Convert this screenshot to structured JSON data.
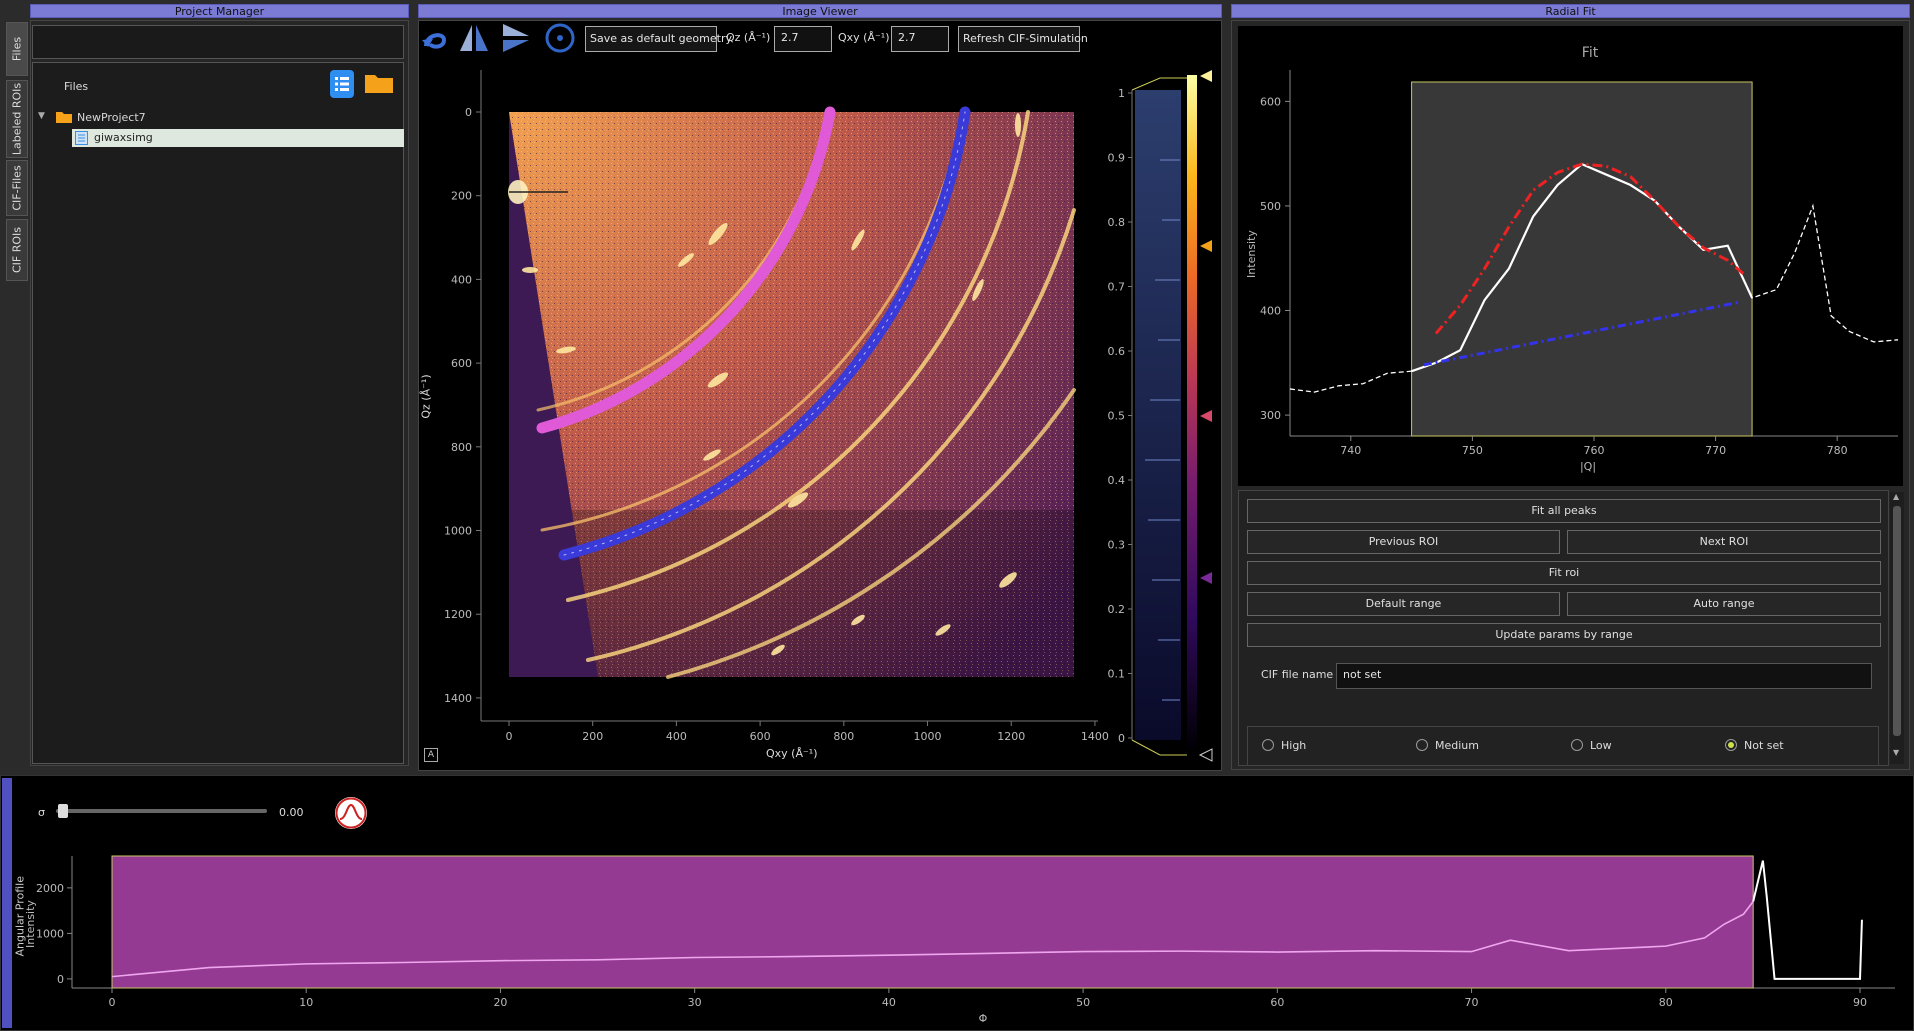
{
  "project_manager": {
    "title": "Project Manager",
    "tabs": [
      "Files",
      "Labeled ROIs",
      "CIF-Files",
      "CIF ROIs"
    ],
    "files_label": "Files",
    "tree": {
      "project": "NewProject7",
      "file": "giwaxsimg"
    }
  },
  "image_viewer": {
    "title": "Image Viewer",
    "save_geometry_label": "Save as default geometry",
    "qz_label": "Qz (Å⁻¹)",
    "qz_value": "2.7",
    "qxy_label": "Qxy (Å⁻¹)",
    "qxy_value": "2.7",
    "refresh_label": "Refresh CIF-Simulation",
    "x_axis_label": "Qxy (Å⁻¹)",
    "y_axis_label": "Qz (Å⁻¹)",
    "x_ticks": [
      "0",
      "200",
      "400",
      "600",
      "800",
      "1000",
      "1200",
      "1400"
    ],
    "y_ticks": [
      "0",
      "200",
      "400",
      "600",
      "800",
      "1000",
      "1200",
      "1400"
    ],
    "colorbar_ticks": [
      "1",
      "0.9",
      "0.8",
      "0.7",
      "0.6",
      "0.5",
      "0.4",
      "0.3",
      "0.2",
      "0.1",
      "0"
    ],
    "corner_button": "A"
  },
  "radial_fit": {
    "title": "Radial Fit",
    "chart_title": "Fit",
    "xlabel": "|Q|",
    "ylabel": "Intensity",
    "x_ticks": [
      "740",
      "750",
      "760",
      "770",
      "780"
    ],
    "y_ticks": [
      "600",
      "500",
      "400",
      "300"
    ],
    "buttons": {
      "fit_all": "Fit all peaks",
      "previous_roi": "Previous ROI",
      "next_roi": "Next ROI",
      "fit_roi": "Fit roi",
      "default_range": "Default range",
      "auto_range": "Auto range",
      "update_params": "Update params by range"
    },
    "cif_label": "CIF file name",
    "cif_value": "not set",
    "confidence": {
      "options": [
        "High",
        "Medium",
        "Low",
        "Not set"
      ],
      "selected": "Not set"
    }
  },
  "angular_profile": {
    "side_label": "Angular Profile",
    "sigma_label": "σ",
    "sigma_value": "0.00",
    "chart_title": "",
    "xlabel": "Φ",
    "ylabel": "Intensity",
    "x_ticks": [
      "0",
      "10",
      "20",
      "30",
      "40",
      "50",
      "60",
      "70",
      "80",
      "90"
    ],
    "y_ticks": [
      "2000",
      "1000",
      "0"
    ]
  },
  "chart_data": [
    {
      "type": "line",
      "title": "Fit",
      "xlabel": "|Q|",
      "ylabel": "Intensity",
      "xlim": [
        735,
        785
      ],
      "ylim": [
        280,
        630
      ],
      "roi_range": [
        745,
        773
      ],
      "series": [
        {
          "name": "",
          "x": [
            735,
            737,
            739,
            741,
            743,
            745,
            747,
            749,
            751,
            753,
            755,
            757,
            759,
            761,
            763,
            765,
            767,
            769,
            771,
            773,
            775,
            776.5,
            778,
            779.5,
            781,
            783,
            785
          ],
          "values": [
            325,
            322,
            328,
            330,
            340,
            342,
            350,
            362,
            410,
            440,
            490,
            520,
            540,
            530,
            520,
            505,
            480,
            458,
            462,
            412,
            420,
            455,
            500,
            395,
            380,
            370,
            372
          ]
        },
        {
          "name": "",
          "x": [
            747,
            749,
            751,
            753,
            755,
            757,
            759,
            761,
            763,
            765,
            767,
            769,
            771,
            772.5
          ],
          "values": [
            378,
            405,
            440,
            480,
            515,
            532,
            540,
            538,
            528,
            505,
            480,
            460,
            448,
            433
          ]
        },
        {
          "name": "",
          "x": [
            746,
            772
          ],
          "values": [
            348,
            408
          ]
        }
      ],
      "colors": [
        "#ffffff",
        "#ee2222",
        "#3333ee"
      ]
    },
    {
      "type": "area",
      "title": "",
      "xlabel": "Φ",
      "ylabel": "Intensity",
      "xlim": [
        0,
        90
      ],
      "ylim": [
        -200,
        2700
      ],
      "roi_range": [
        0,
        84.5
      ],
      "series": [
        {
          "name": "",
          "x": [
            0,
            5,
            10,
            15,
            20,
            25,
            30,
            35,
            40,
            45,
            50,
            55,
            60,
            65,
            70,
            72,
            75,
            80,
            82,
            83,
            84,
            84.5,
            85,
            85.2,
            85.6,
            88,
            90,
            90.1
          ],
          "values": [
            50,
            250,
            330,
            360,
            400,
            420,
            470,
            490,
            520,
            560,
            600,
            610,
            590,
            620,
            600,
            850,
            620,
            720,
            900,
            1200,
            1420,
            1700,
            2600,
            1800,
            0,
            0,
            0,
            1300
          ]
        }
      ],
      "colors": [
        "#f0a6ee"
      ]
    }
  ]
}
